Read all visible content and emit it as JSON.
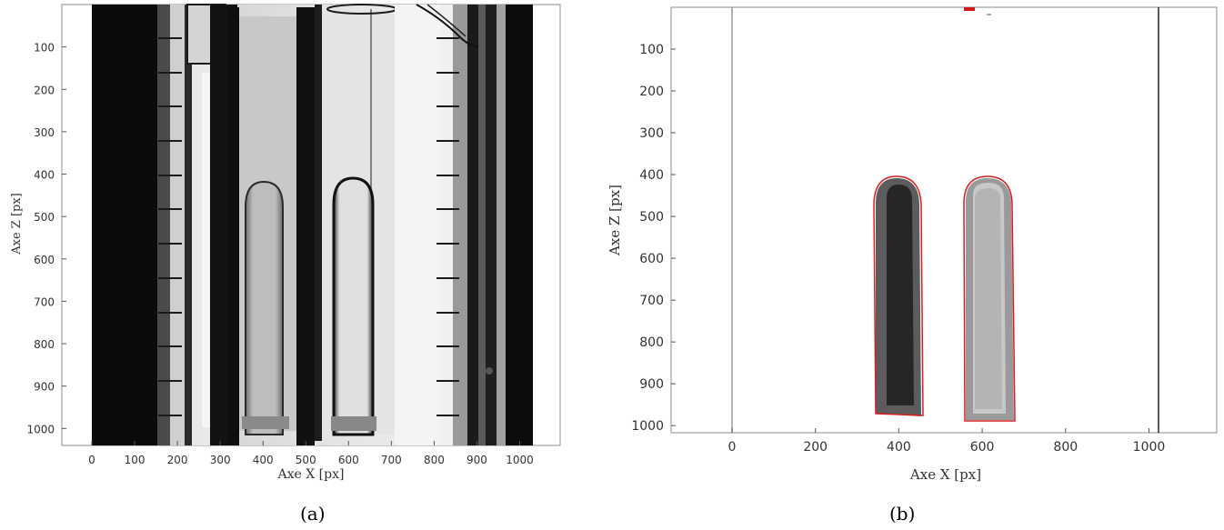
{
  "figure": {
    "panels": [
      {
        "id": "a",
        "caption": "(a)",
        "xlabel": "Axe X [px]",
        "ylabel": "Axe Z [px]",
        "xticks": [
          "0",
          "100",
          "200",
          "300",
          "400",
          "500",
          "600",
          "700",
          "800",
          "900",
          "1000"
        ],
        "yticks": [
          "100",
          "200",
          "300",
          "400",
          "500",
          "600",
          "700",
          "800",
          "900",
          "1000"
        ],
        "content": "grayscale photograph"
      },
      {
        "id": "b",
        "caption": "(b)",
        "xlabel": "Axe X [px]",
        "ylabel": "Axe Z [px]",
        "xticks": [
          "0",
          "200",
          "400",
          "600",
          "800",
          "1000"
        ],
        "yticks": [
          "100",
          "200",
          "300",
          "400",
          "500",
          "600",
          "700",
          "800",
          "900",
          "1000"
        ],
        "content": "segmented bubbles with red contours"
      }
    ]
  }
}
